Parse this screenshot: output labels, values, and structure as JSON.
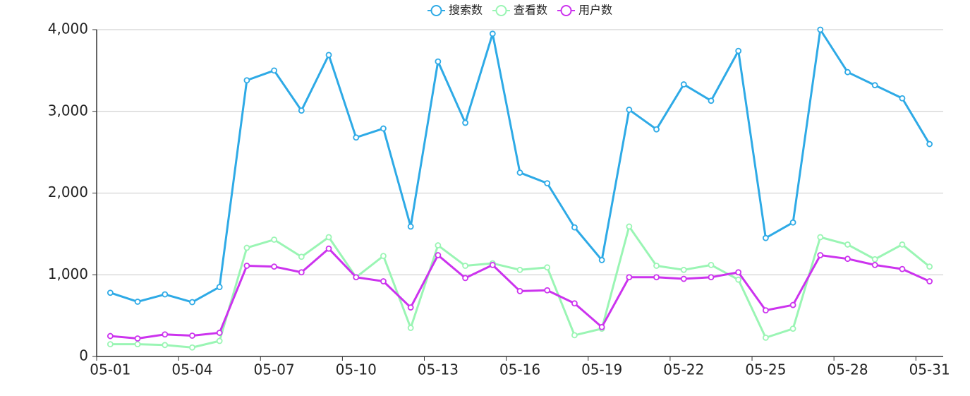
{
  "chart_data": {
    "type": "line",
    "categories": [
      "05-01",
      null,
      null,
      "05-04",
      null,
      null,
      "05-07",
      null,
      null,
      "05-10",
      null,
      null,
      "05-13",
      null,
      null,
      "05-16",
      null,
      null,
      "05-19",
      null,
      null,
      "05-22",
      null,
      null,
      "05-25",
      null,
      null,
      "05-28",
      null,
      null,
      "05-31"
    ],
    "series": [
      {
        "name": "搜索数",
        "color": "#2eaae6",
        "values": [
          780,
          670,
          760,
          665,
          850,
          3380,
          3500,
          3010,
          3690,
          2680,
          2790,
          1590,
          3610,
          2860,
          3950,
          2250,
          2120,
          1580,
          1180,
          3020,
          2780,
          3330,
          3130,
          3740,
          1450,
          1640,
          4000,
          3480,
          3320,
          3160,
          2600
        ]
      },
      {
        "name": "查看数",
        "color": "#9af5b4",
        "values": [
          150,
          150,
          140,
          110,
          190,
          1330,
          1430,
          1220,
          1460,
          970,
          1230,
          350,
          1360,
          1110,
          1140,
          1060,
          1090,
          260,
          340,
          1590,
          1110,
          1060,
          1120,
          940,
          230,
          340,
          1460,
          1370,
          1190,
          1370,
          1100
        ]
      },
      {
        "name": "用户数",
        "color": "#cc33ee",
        "values": [
          250,
          220,
          270,
          255,
          290,
          1110,
          1100,
          1030,
          1320,
          970,
          920,
          600,
          1240,
          960,
          1120,
          800,
          810,
          650,
          360,
          970,
          970,
          950,
          970,
          1030,
          565,
          630,
          1240,
          1195,
          1120,
          1070,
          920
        ]
      }
    ],
    "ylim": [
      0,
      4000
    ],
    "yticks": [
      0,
      {
        "value": 1000,
        "label": "1,000"
      },
      {
        "value": 2000,
        "label": "2,000"
      },
      {
        "value": 3000,
        "label": "3,000"
      },
      {
        "value": 4000,
        "label": "4,000"
      }
    ],
    "grid": true,
    "legend": "top"
  }
}
